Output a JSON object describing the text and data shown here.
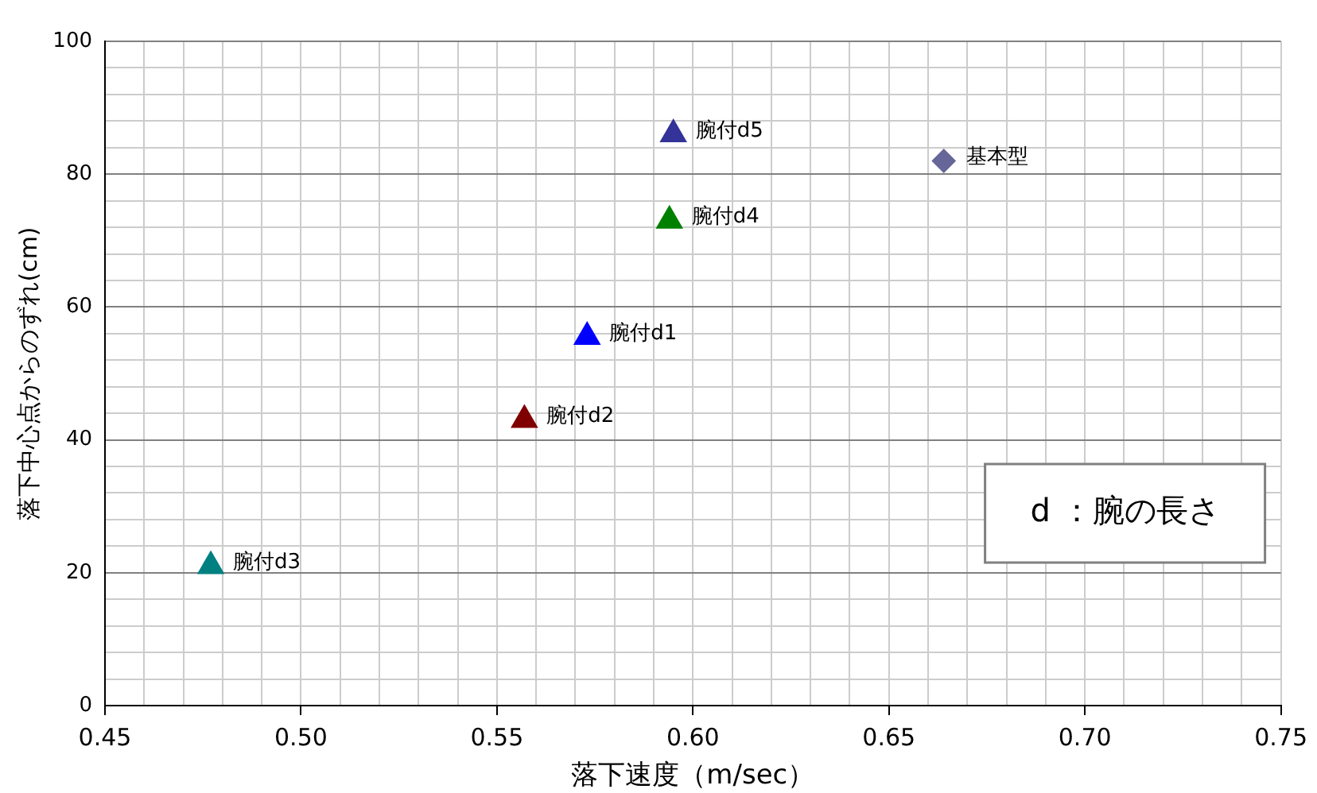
{
  "chart_data": {
    "type": "scatter",
    "xlabel": "落下速度（m/sec）",
    "ylabel": "落下中心点からのずれ(cm)",
    "xlim": [
      0.45,
      0.75
    ],
    "xticks": [
      0.45,
      {
        "value": 0.46,
        "label": null
      },
      {
        "value": 0.47,
        "label": null
      },
      {
        "value": 0.48,
        "label": null
      },
      {
        "value": 0.49,
        "label": null
      },
      {
        "value": 0.5,
        "label": "0.50"
      },
      {
        "value": 0.51,
        "label": null
      },
      {
        "value": 0.52,
        "label": null
      },
      {
        "value": 0.53,
        "label": null
      },
      {
        "value": 0.54,
        "label": null
      },
      0.55,
      {
        "value": 0.56,
        "label": null
      },
      {
        "value": 0.57,
        "label": null
      },
      {
        "value": 0.58,
        "label": null
      },
      {
        "value": 0.59,
        "label": null
      },
      {
        "value": 0.6,
        "label": "0.60"
      },
      {
        "value": 0.61,
        "label": null
      },
      {
        "value": 0.62,
        "label": null
      },
      {
        "value": 0.63,
        "label": null
      },
      {
        "value": 0.64,
        "label": null
      },
      0.65,
      {
        "value": 0.66,
        "label": null
      },
      {
        "value": 0.67,
        "label": null
      },
      {
        "value": 0.68,
        "label": null
      },
      {
        "value": 0.69,
        "label": null
      },
      {
        "value": 0.7,
        "label": "0.70"
      },
      {
        "value": 0.71,
        "label": null
      },
      {
        "value": 0.72,
        "label": null
      },
      {
        "value": 0.73,
        "label": null
      },
      {
        "value": 0.74,
        "label": null
      },
      0.75
    ],
    "ylim": [
      0,
      100
    ],
    "yticks": [
      0,
      {
        "value": 4,
        "label": null
      },
      {
        "value": 8,
        "label": null
      },
      {
        "value": 12,
        "label": null
      },
      {
        "value": 16,
        "label": null
      },
      20,
      {
        "value": 24,
        "label": null
      },
      {
        "value": 28,
        "label": null
      },
      {
        "value": 32,
        "label": null
      },
      {
        "value": 36,
        "label": null
      },
      40,
      {
        "value": 44,
        "label": null
      },
      {
        "value": 48,
        "label": null
      },
      {
        "value": 52,
        "label": null
      },
      {
        "value": 56,
        "label": null
      },
      60,
      {
        "value": 64,
        "label": null
      },
      {
        "value": 68,
        "label": null
      },
      {
        "value": 72,
        "label": null
      },
      {
        "value": 76,
        "label": null
      },
      80,
      {
        "value": 84,
        "label": null
      },
      {
        "value": 88,
        "label": null
      },
      {
        "value": 92,
        "label": null
      },
      {
        "value": 96,
        "label": null
      },
      100
    ],
    "grid": true,
    "legend": false,
    "series": [
      {
        "name": "腕付d5",
        "color": "#333399",
        "marker": "triangle",
        "x": [
          0.595
        ],
        "values": [
          86
        ]
      },
      {
        "name": "基本型",
        "color": "#666699",
        "marker": "diamond",
        "x": [
          0.664
        ],
        "values": [
          82
        ]
      },
      {
        "name": "腕付d4",
        "color": "#008000",
        "marker": "triangle",
        "x": [
          0.594
        ],
        "values": [
          73
        ]
      },
      {
        "name": "腕付d1",
        "color": "#0000ff",
        "marker": "triangle",
        "x": [
          0.573
        ],
        "values": [
          55.5
        ]
      },
      {
        "name": "腕付d2",
        "color": "#800000",
        "marker": "triangle",
        "x": [
          0.557
        ],
        "values": [
          43
        ]
      },
      {
        "name": "腕付d3",
        "color": "#008080",
        "marker": "triangle",
        "x": [
          0.477
        ],
        "values": [
          21
        ]
      }
    ],
    "annotations": [
      "d ：腕の長さ"
    ]
  }
}
